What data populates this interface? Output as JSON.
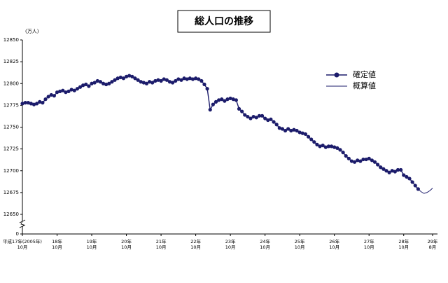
{
  "chart_data": {
    "type": "line",
    "title": "総人口の推移",
    "y_unit_label": "(万人)",
    "categories": [
      "平成17年(2005年)\n10月",
      null,
      null,
      null,
      null,
      null,
      null,
      null,
      null,
      null,
      null,
      null,
      "18年\n10月",
      null,
      null,
      null,
      null,
      null,
      null,
      null,
      null,
      null,
      null,
      null,
      "19年\n10月",
      null,
      null,
      null,
      null,
      null,
      null,
      null,
      null,
      null,
      null,
      null,
      "20年\n10月",
      null,
      null,
      null,
      null,
      null,
      null,
      null,
      null,
      null,
      null,
      null,
      "21年\n10月",
      null,
      null,
      null,
      null,
      null,
      null,
      null,
      null,
      null,
      null,
      null,
      "22年\n10月",
      null,
      null,
      null,
      null,
      null,
      null,
      null,
      null,
      null,
      null,
      null,
      "23年\n10月",
      null,
      null,
      null,
      null,
      null,
      null,
      null,
      null,
      null,
      null,
      null,
      "24年\n10月",
      null,
      null,
      null,
      null,
      null,
      null,
      null,
      null,
      null,
      null,
      null,
      "25年\n10月",
      null,
      null,
      null,
      null,
      null,
      null,
      null,
      null,
      null,
      null,
      null,
      "26年\n10月",
      null,
      null,
      null,
      null,
      null,
      null,
      null,
      null,
      null,
      null,
      null,
      "27年\n10月",
      null,
      null,
      null,
      null,
      null,
      null,
      null,
      null,
      null,
      null,
      null,
      "28年\n10月",
      null,
      null,
      null,
      null,
      null,
      null,
      null,
      null,
      null,
      "29年\n8月"
    ],
    "series": [
      {
        "name": "確定値",
        "color": "#1c1c6b",
        "marker": true,
        "values": [
          12777,
          12778,
          12778,
          12777,
          12776,
          12777,
          12779,
          12778,
          12782,
          12785,
          12787,
          12786,
          12790,
          12791,
          12792,
          12790,
          12791,
          12793,
          12792,
          12794,
          12796,
          12798,
          12799,
          12797,
          12800,
          12801,
          12803,
          12802,
          12800,
          12799,
          12800,
          12802,
          12804,
          12806,
          12807,
          12806,
          12808,
          12809,
          12808,
          12806,
          12804,
          12802,
          12801,
          12800,
          12802,
          12801,
          12803,
          12804,
          12803,
          12805,
          12804,
          12802,
          12801,
          12803,
          12805,
          12804,
          12806,
          12805,
          12806,
          12805,
          12806,
          12805,
          12803,
          12799,
          12794,
          12770,
          12776,
          12779,
          12781,
          12782,
          12780,
          12782,
          12783,
          12782,
          12781,
          12771,
          12768,
          12764,
          12762,
          12760,
          12762,
          12761,
          12763,
          12763,
          12760,
          12758,
          12759,
          12756,
          12753,
          12749,
          12748,
          12746,
          12748,
          12746,
          12747,
          12746,
          12744,
          12743,
          12742,
          12739,
          12736,
          12733,
          12730,
          12728,
          12729,
          12727,
          12728,
          12728,
          12727,
          12726,
          12724,
          12721,
          12717,
          12714,
          12711,
          12710,
          12712,
          12711,
          12713,
          12713,
          12714,
          12712,
          12710,
          12707,
          12704,
          12702,
          12700,
          12698,
          12700,
          12699,
          12701,
          12701,
          12695,
          12693,
          12691,
          12687,
          12683,
          12679,
          null,
          null,
          null,
          null,
          null
        ]
      },
      {
        "name": "概算値",
        "color": "#1c1c6b",
        "marker": false,
        "values": [
          null,
          null,
          null,
          null,
          null,
          null,
          null,
          null,
          null,
          null,
          null,
          null,
          null,
          null,
          null,
          null,
          null,
          null,
          null,
          null,
          null,
          null,
          null,
          null,
          null,
          null,
          null,
          null,
          null,
          null,
          null,
          null,
          null,
          null,
          null,
          null,
          null,
          null,
          null,
          null,
          null,
          null,
          null,
          null,
          null,
          null,
          null,
          null,
          null,
          null,
          null,
          null,
          null,
          null,
          null,
          null,
          null,
          null,
          null,
          null,
          null,
          null,
          null,
          null,
          null,
          null,
          null,
          null,
          null,
          null,
          null,
          null,
          null,
          null,
          null,
          null,
          null,
          null,
          null,
          null,
          null,
          null,
          null,
          null,
          null,
          null,
          null,
          null,
          null,
          null,
          null,
          null,
          null,
          null,
          null,
          null,
          null,
          null,
          null,
          null,
          null,
          null,
          null,
          null,
          null,
          null,
          null,
          null,
          null,
          null,
          null,
          null,
          null,
          null,
          null,
          null,
          null,
          null,
          null,
          null,
          null,
          null,
          null,
          null,
          null,
          null,
          null,
          null,
          null,
          null,
          null,
          null,
          null,
          null,
          null,
          null,
          null,
          12679,
          12676,
          12674,
          12675,
          12677,
          12680
        ]
      }
    ],
    "ylim": [
      0,
      12850
    ],
    "axis_break": [
      0,
      12650
    ],
    "yticks": [
      0,
      12650,
      12675,
      12700,
      12725,
      12750,
      12775,
      12800,
      12825,
      12850
    ],
    "grid": false
  }
}
